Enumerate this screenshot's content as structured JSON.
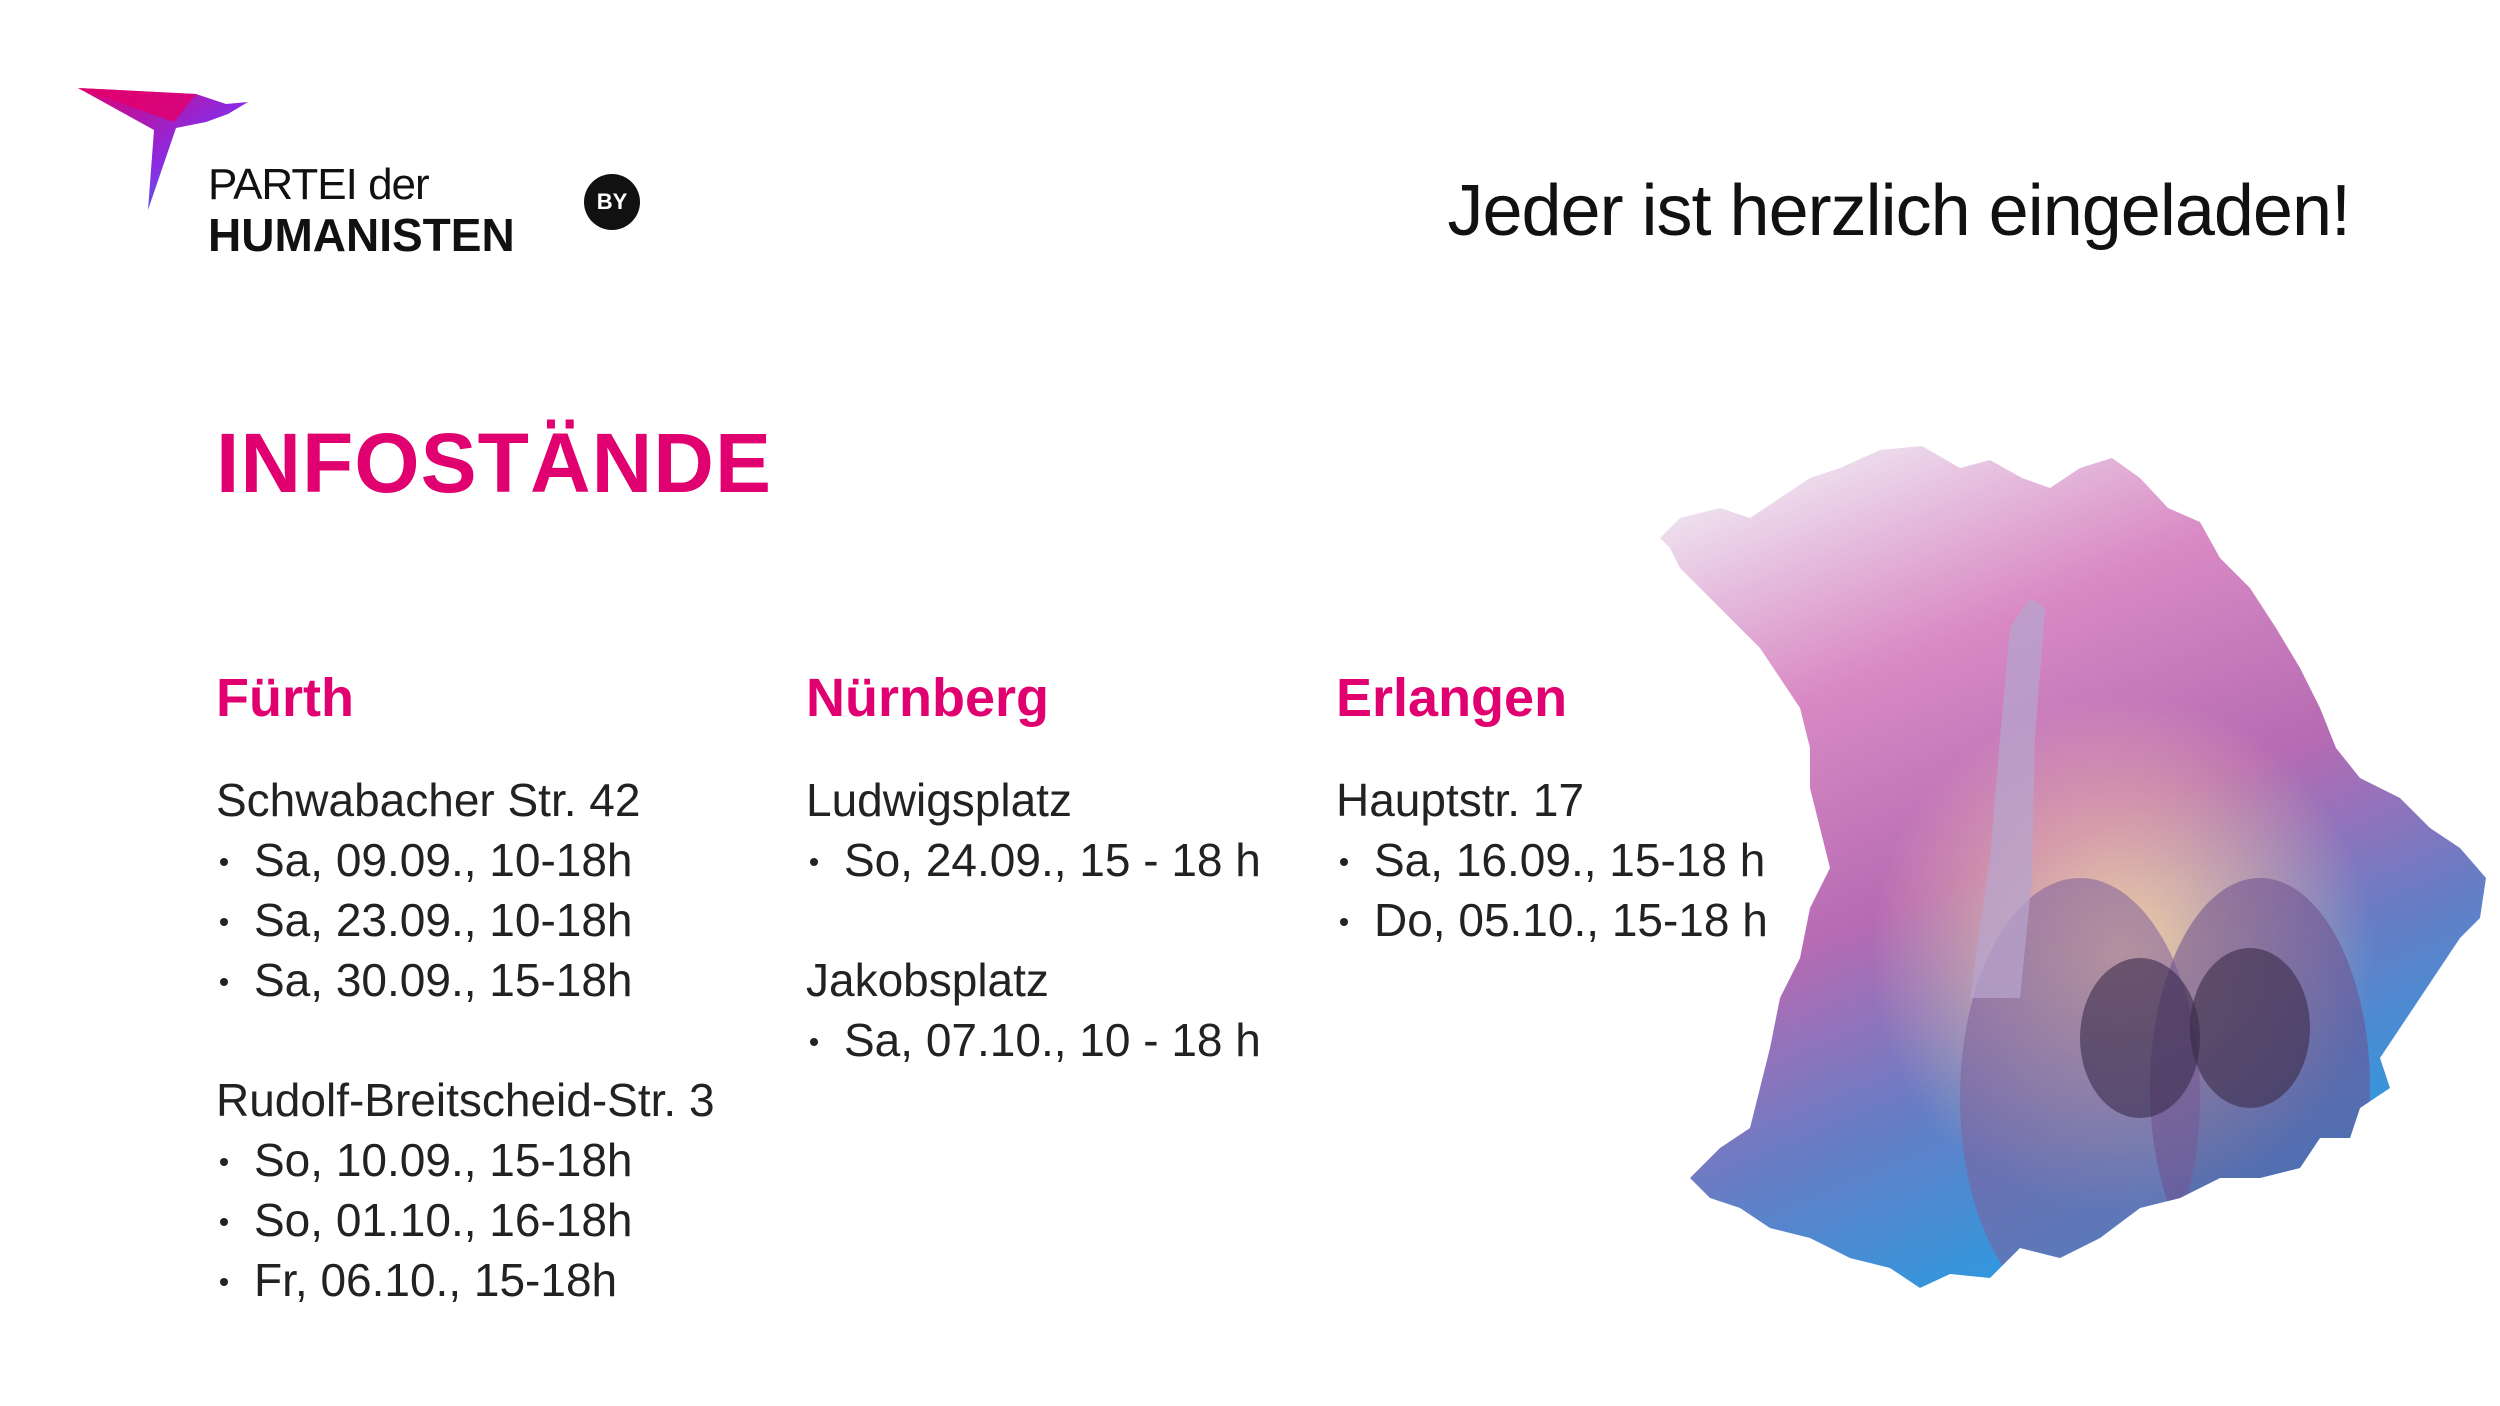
{
  "brand": {
    "name_line1": "PARTEI der",
    "name_line2": "HUMANISTEN",
    "region_badge": "BY",
    "colors": {
      "magenta": "#e0006f",
      "purple": "#8a2be2",
      "blue": "#1e9be6"
    }
  },
  "tagline": "Jeder ist herzlich eingeladen!",
  "title": "INFOSTÄNDE",
  "columns": [
    {
      "city": "Fürth",
      "locations": [
        {
          "address": "Schwabacher Str. 42",
          "dates": [
            "Sa, 09.09., 10-18h",
            "Sa, 23.09., 10-18h",
            "Sa, 30.09., 15-18h"
          ]
        },
        {
          "address": "Rudolf-Breitscheid-Str. 3",
          "dates": [
            "So, 10.09., 15-18h",
            "So, 01.10., 16-18h",
            "Fr, 06.10., 15-18h"
          ]
        }
      ]
    },
    {
      "city": "Nürnberg",
      "locations": [
        {
          "address": "Ludwigsplatz",
          "dates": [
            "So, 24.09., 15 - 18 h"
          ]
        },
        {
          "address": "Jakobsplatz",
          "dates": [
            "Sa, 07.10., 10 - 18 h"
          ]
        }
      ]
    },
    {
      "city": "Erlangen",
      "locations": [
        {
          "address": "Hauptstr. 17",
          "dates": [
            "Sa, 16.09., 15-18 h",
            "Do, 05.10., 15-18 h"
          ]
        }
      ]
    }
  ],
  "icons": {
    "logo": "hummingbird-logo-icon",
    "map": "bavaria-map-image"
  }
}
